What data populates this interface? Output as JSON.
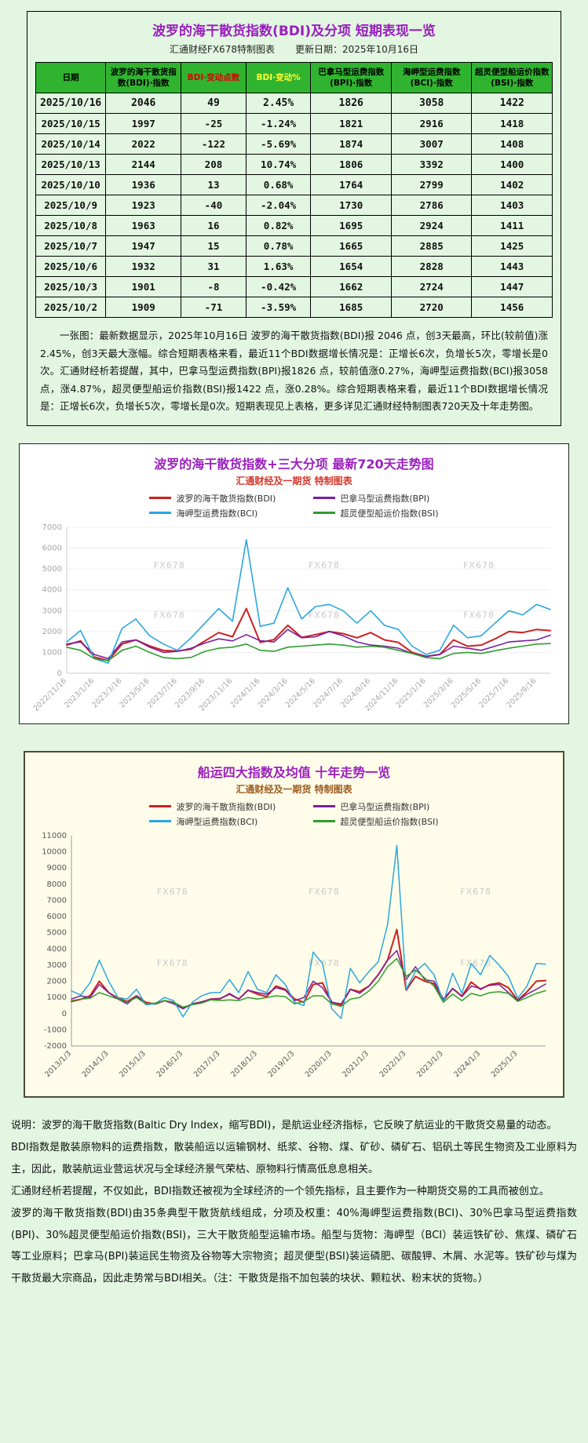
{
  "colors": {
    "page_background": "#e2f6e2",
    "title_purple": "#9a1fbe",
    "table_header_green": "#30b430",
    "bdi_red": "#cc2020",
    "bpi_purple": "#7a1fa2",
    "bci_blue": "#2aa7df",
    "bsi_green": "#2f9e2f"
  },
  "table_card": {
    "title": "波罗的海干散货指数(BDI)及分项 短期表现一览",
    "subtitle_left": "汇通财经FX678特制图表",
    "subtitle_right": "更新日期：2025年10月16日",
    "columns": [
      {
        "label": "日期",
        "color": "#000000"
      },
      {
        "label": "波罗的海干散货指数(BDI)·指数",
        "color": "#000000"
      },
      {
        "label": "BDI·变动点数",
        "color": "#dd0000"
      },
      {
        "label": "BDI·变动%",
        "color": "#ffff33"
      },
      {
        "label": "巴拿马型运费指数(BPI)·指数",
        "color": "#000000"
      },
      {
        "label": "海岬型运费指数(BCI)·指数",
        "color": "#000000"
      },
      {
        "label": "超灵便型船运价指数(BSI)·指数",
        "color": "#000000"
      }
    ],
    "rows": [
      [
        "2025/10/16",
        "2046",
        "49",
        "2.45%",
        "1826",
        "3058",
        "1422"
      ],
      [
        "2025/10/15",
        "1997",
        "-25",
        "-1.24%",
        "1821",
        "2916",
        "1418"
      ],
      [
        "2025/10/14",
        "2022",
        "-122",
        "-5.69%",
        "1874",
        "3007",
        "1408"
      ],
      [
        "2025/10/13",
        "2144",
        "208",
        "10.74%",
        "1806",
        "3392",
        "1400"
      ],
      [
        "2025/10/10",
        "1936",
        "13",
        "0.68%",
        "1764",
        "2799",
        "1402"
      ],
      [
        "2025/10/9",
        "1923",
        "-40",
        "-2.04%",
        "1730",
        "2786",
        "1403"
      ],
      [
        "2025/10/8",
        "1963",
        "16",
        "0.82%",
        "1695",
        "2924",
        "1411"
      ],
      [
        "2025/10/7",
        "1947",
        "15",
        "0.78%",
        "1665",
        "2885",
        "1425"
      ],
      [
        "2025/10/6",
        "1932",
        "31",
        "1.63%",
        "1654",
        "2828",
        "1443"
      ],
      [
        "2025/10/3",
        "1901",
        "-8",
        "-0.42%",
        "1662",
        "2724",
        "1447"
      ],
      [
        "2025/10/2",
        "1909",
        "-71",
        "-3.59%",
        "1685",
        "2720",
        "1456"
      ]
    ],
    "note": "一张图：最新数据显示，2025年10月16日 波罗的海干散货指数(BDI)报 2046 点，创3天最高，环比(较前值)涨2.45%，创3天最大涨幅。综合短期表格来看，最近11个BDI数据增长情况是：正增长6次，负增长5次，零增长是0次。汇通财经析若提醒，其中，巴拿马型运费指数(BPI)报1826 点，较前值涨0.27%，海岬型运费指数(BCI)报3058 点，涨4.87%，超灵便型船运价指数(BSI)报1422 点，涨0.28%。综合短期表格来看，最近11个BDI数据增长情况是：正增长6次，负增长5次，零增长是0次。短期表现见上表格，更多详见汇通财经特制图表720天及十年走势图。"
  },
  "chart_data": [
    {
      "type": "line",
      "title": "波罗的海干散货指数+三大分项 最新720天走势图",
      "subtitle": "汇通财经及一期货 特制图表",
      "watermark": "FX678",
      "legend_position": "top",
      "grid": true,
      "grid_color": "#efefef",
      "axis_color": "#a6a6a6",
      "axis_line": "#cccccc",
      "ylim": [
        0,
        7000
      ],
      "ytick_step": 1000,
      "xtick_every": 2,
      "x_ticks": [
        "2022/11/16",
        "2023/1/16",
        "2023/3/16",
        "2023/5/16",
        "2023/7/16",
        "2023/9/16",
        "2023/11/16",
        "2024/1/16",
        "2024/3/16",
        "2024/5/16",
        "2024/7/16",
        "2024/9/16",
        "2024/11/16",
        "2025/1/16",
        "2025/3/16",
        "2025/5/16",
        "2025/7/16",
        "2025/9/16"
      ],
      "series": [
        {
          "name": "波罗的海干散货指数(BDI)",
          "color": "#cc2020",
          "width": 2,
          "values": [
            1355,
            1550,
            780,
            605,
            1400,
            1600,
            1310,
            1090,
            1060,
            1150,
            1550,
            1950,
            1750,
            3100,
            1480,
            1610,
            2300,
            1720,
            1850,
            2000,
            1900,
            1700,
            1950,
            1600,
            1480,
            1000,
            810,
            900,
            1600,
            1300,
            1350,
            1650,
            2000,
            1950,
            2100,
            2046
          ]
        },
        {
          "name": "巴拿马型运费指数(BPI)",
          "color": "#7a1fa2",
          "width": 1.6,
          "values": [
            1400,
            1500,
            900,
            700,
            1500,
            1600,
            1250,
            1000,
            1050,
            1200,
            1450,
            1650,
            1550,
            1850,
            1560,
            1500,
            2100,
            1700,
            1750,
            2000,
            1800,
            1500,
            1350,
            1300,
            1200,
            950,
            800,
            900,
            1300,
            1200,
            1100,
            1300,
            1500,
            1550,
            1600,
            1826
          ]
        },
        {
          "name": "海岬型运费指数(BCI)",
          "color": "#2aa7df",
          "width": 1.6,
          "values": [
            1500,
            2050,
            700,
            480,
            2150,
            2600,
            1800,
            1400,
            1100,
            1700,
            2400,
            3100,
            2500,
            6400,
            2250,
            2400,
            4100,
            2600,
            3200,
            3300,
            3000,
            2400,
            3000,
            2300,
            2100,
            1300,
            900,
            1100,
            2300,
            1700,
            1800,
            2400,
            3000,
            2800,
            3300,
            3058
          ]
        },
        {
          "name": "超灵便型船运价指数(BSI)",
          "color": "#2f9e2f",
          "width": 1.6,
          "values": [
            1250,
            1100,
            700,
            600,
            1100,
            1300,
            1000,
            750,
            700,
            760,
            1050,
            1200,
            1250,
            1400,
            1100,
            1050,
            1250,
            1300,
            1350,
            1400,
            1350,
            1250,
            1300,
            1250,
            1100,
            950,
            750,
            700,
            950,
            1000,
            950,
            1080,
            1200,
            1300,
            1400,
            1422
          ]
        }
      ]
    },
    {
      "type": "line",
      "title": "船运四大指数及均值 十年走势一览",
      "subtitle": "汇通财经及一期货 特制图表",
      "watermark": "FX678",
      "legend_position": "top",
      "grid": false,
      "grid_color": "#efe9d0",
      "axis_color": "#555555",
      "axis_line": "#999999",
      "ylim": [
        -2000,
        11000
      ],
      "ytick_step": 1000,
      "xtick_every": 4,
      "x_ticks": [
        "2013/1/3",
        "2014/1/3",
        "2015/1/3",
        "2016/1/3",
        "2017/1/3",
        "2018/1/3",
        "2019/1/3",
        "2020/1/3",
        "2021/1/3",
        "2022/1/3",
        "2023/1/3",
        "2024/1/3",
        "2025/1/3"
      ],
      "series": [
        {
          "name": "波罗的海干散货指数(BDI)",
          "color": "#cc2020",
          "width": 2,
          "values": [
            750,
            880,
            1100,
            2000,
            1300,
            950,
            750,
            1100,
            700,
            590,
            800,
            700,
            320,
            600,
            720,
            900,
            930,
            1200,
            900,
            1450,
            1200,
            1050,
            1700,
            1500,
            900,
            700,
            1800,
            1900,
            700,
            520,
            1500,
            1350,
            1700,
            2400,
            3300,
            5200,
            1450,
            2300,
            2000,
            1850,
            800,
            1550,
            1080,
            1950,
            1500,
            1800,
            1900,
            1600,
            820,
            1350,
            2000,
            2046
          ]
        },
        {
          "name": "巴拿马型运费指数(BPI)",
          "color": "#7a1fa2",
          "width": 1.5,
          "values": [
            900,
            1100,
            1000,
            1800,
            1300,
            900,
            600,
            1100,
            600,
            600,
            800,
            600,
            300,
            600,
            700,
            900,
            900,
            1250,
            900,
            1450,
            1300,
            1200,
            1600,
            1450,
            800,
            1000,
            2000,
            1600,
            700,
            600,
            1500,
            1250,
            1700,
            2400,
            3300,
            3900,
            2100,
            2900,
            2100,
            2000,
            900,
            1550,
            1050,
            1700,
            1550,
            1750,
            1800,
            1300,
            800,
            1200,
            1500,
            1826
          ]
        },
        {
          "name": "海岬型运费指数(BCI)",
          "color": "#2aa7df",
          "width": 1.5,
          "values": [
            1400,
            1150,
            1900,
            3300,
            2000,
            1000,
            900,
            1500,
            550,
            600,
            1000,
            800,
            -200,
            700,
            1100,
            1300,
            1300,
            2100,
            1300,
            2600,
            1500,
            1300,
            2400,
            1800,
            700,
            500,
            3800,
            3100,
            300,
            -300,
            2800,
            1900,
            2600,
            3200,
            5500,
            10400,
            1500,
            2600,
            3100,
            2400,
            700,
            2500,
            1250,
            3100,
            2400,
            3600,
            3000,
            2300,
            950,
            1700,
            3100,
            3058
          ]
        },
        {
          "name": "超灵便型船运价指数(BSI)",
          "color": "#2f9e2f",
          "width": 1.5,
          "values": [
            800,
            900,
            950,
            1300,
            1100,
            900,
            700,
            1000,
            600,
            650,
            800,
            700,
            400,
            550,
            650,
            850,
            800,
            850,
            800,
            1000,
            900,
            1000,
            1100,
            1050,
            600,
            750,
            1100,
            1100,
            600,
            450,
            900,
            1000,
            1400,
            2000,
            2900,
            3400,
            2300,
            2700,
            2200,
            1700,
            700,
            1200,
            800,
            1250,
            1100,
            1300,
            1350,
            1250,
            750,
            1000,
            1250,
            1422
          ]
        }
      ]
    }
  ],
  "footer": {
    "paragraphs": [
      "说明：波罗的海干散货指数(Baltic Dry Index，缩写BDI)，是航运业经济指标，它反映了航运业的干散货交易量的动态。",
      "BDI指数是散装原物料的运费指数，散装船运以运输钢材、纸浆、谷物、煤、矿砂、磷矿石、铝矾土等民生物资及工业原料为主，因此，散装航运业营运状况与全球经济景气荣枯、原物料行情高低息息相关。",
      "汇通财经析若提醒，不仅如此，BDI指数还被视为全球经济的一个领先指标，且主要作为一种期货交易的工具而被创立。",
      "波罗的海干散货指数(BDI)由35条典型干散货航线组成，分项及权重：40%海岬型运费指数(BCI)、30%巴拿马型运费指数(BPI)、30%超灵便型船运价指数(BSI)，三大干散货船型运输市场。船型与货物：海岬型（BCI）装运铁矿砂、焦煤、磷矿石等工业原料；巴拿马(BPI)装运民生物资及谷物等大宗物资；超灵便型(BSI)装运磷肥、碳酸钾、木屑、水泥等。铁矿砂与煤为干散货最大宗商品，因此走势常与BDI相关。（注：干散货是指不加包装的块状、颗粒状、粉末状的货物。）"
    ]
  }
}
